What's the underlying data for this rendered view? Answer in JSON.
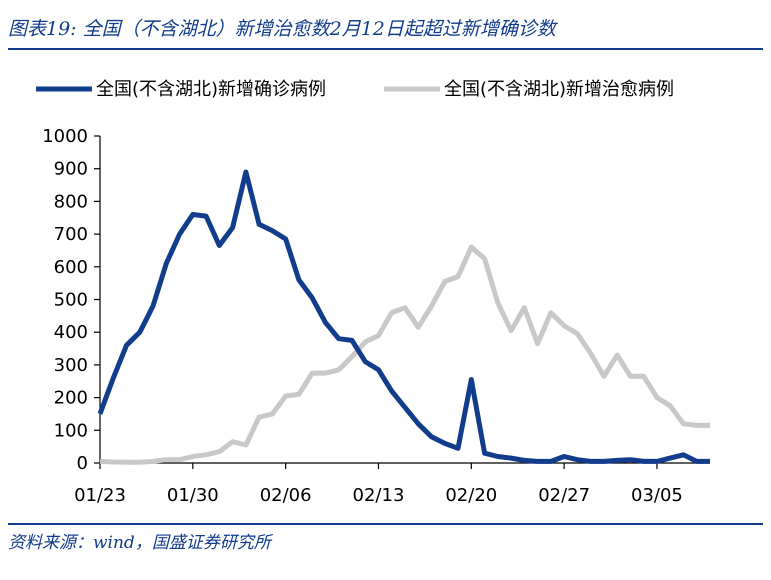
{
  "header": {
    "title": "图表19:  全国（不含湖北）新增治愈数2月12日起超过新增确诊数"
  },
  "footer": {
    "source": "资料来源：wind，国盛证券研究所"
  },
  "chart_data": {
    "type": "line",
    "legend_position": "top",
    "grid": false,
    "ylim": [
      0,
      1000
    ],
    "yticks": [
      0,
      100,
      200,
      300,
      400,
      500,
      600,
      700,
      800,
      900,
      1000
    ],
    "xticks": [
      "01/23",
      "01/30",
      "02/06",
      "02/13",
      "02/20",
      "02/27",
      "03/05"
    ],
    "x": [
      "01/23",
      "01/24",
      "01/25",
      "01/26",
      "01/27",
      "01/28",
      "01/29",
      "01/30",
      "01/31",
      "02/01",
      "02/02",
      "02/03",
      "02/04",
      "02/05",
      "02/06",
      "02/07",
      "02/08",
      "02/09",
      "02/10",
      "02/11",
      "02/12",
      "02/13",
      "02/14",
      "02/15",
      "02/16",
      "02/17",
      "02/18",
      "02/19",
      "02/20",
      "02/21",
      "02/22",
      "02/23",
      "02/24",
      "02/25",
      "02/26",
      "02/27",
      "02/28",
      "02/29",
      "03/01",
      "03/02",
      "03/03",
      "03/04",
      "03/05",
      "03/06",
      "03/07",
      "03/08",
      "03/09"
    ],
    "series": [
      {
        "name": "全国(不含湖北)新增确诊病例",
        "color": "#123c8c",
        "values": [
          150,
          260,
          360,
          400,
          480,
          610,
          700,
          760,
          755,
          665,
          720,
          890,
          730,
          710,
          685,
          560,
          505,
          430,
          380,
          375,
          310,
          285,
          220,
          170,
          120,
          80,
          60,
          45,
          255,
          30,
          20,
          15,
          8,
          5,
          5,
          20,
          10,
          5,
          5,
          8,
          10,
          5,
          5,
          15,
          25,
          5,
          5
        ]
      },
      {
        "name": "全国(不含湖北)新增治愈病例",
        "color": "#c8c8c8",
        "values": [
          5,
          3,
          2,
          2,
          5,
          10,
          10,
          20,
          25,
          35,
          65,
          55,
          140,
          150,
          205,
          210,
          275,
          275,
          285,
          325,
          370,
          390,
          460,
          475,
          415,
          480,
          555,
          570,
          660,
          625,
          490,
          405,
          475,
          365,
          460,
          420,
          395,
          335,
          265,
          330,
          265,
          265,
          200,
          175,
          120,
          115,
          115
        ]
      }
    ]
  }
}
